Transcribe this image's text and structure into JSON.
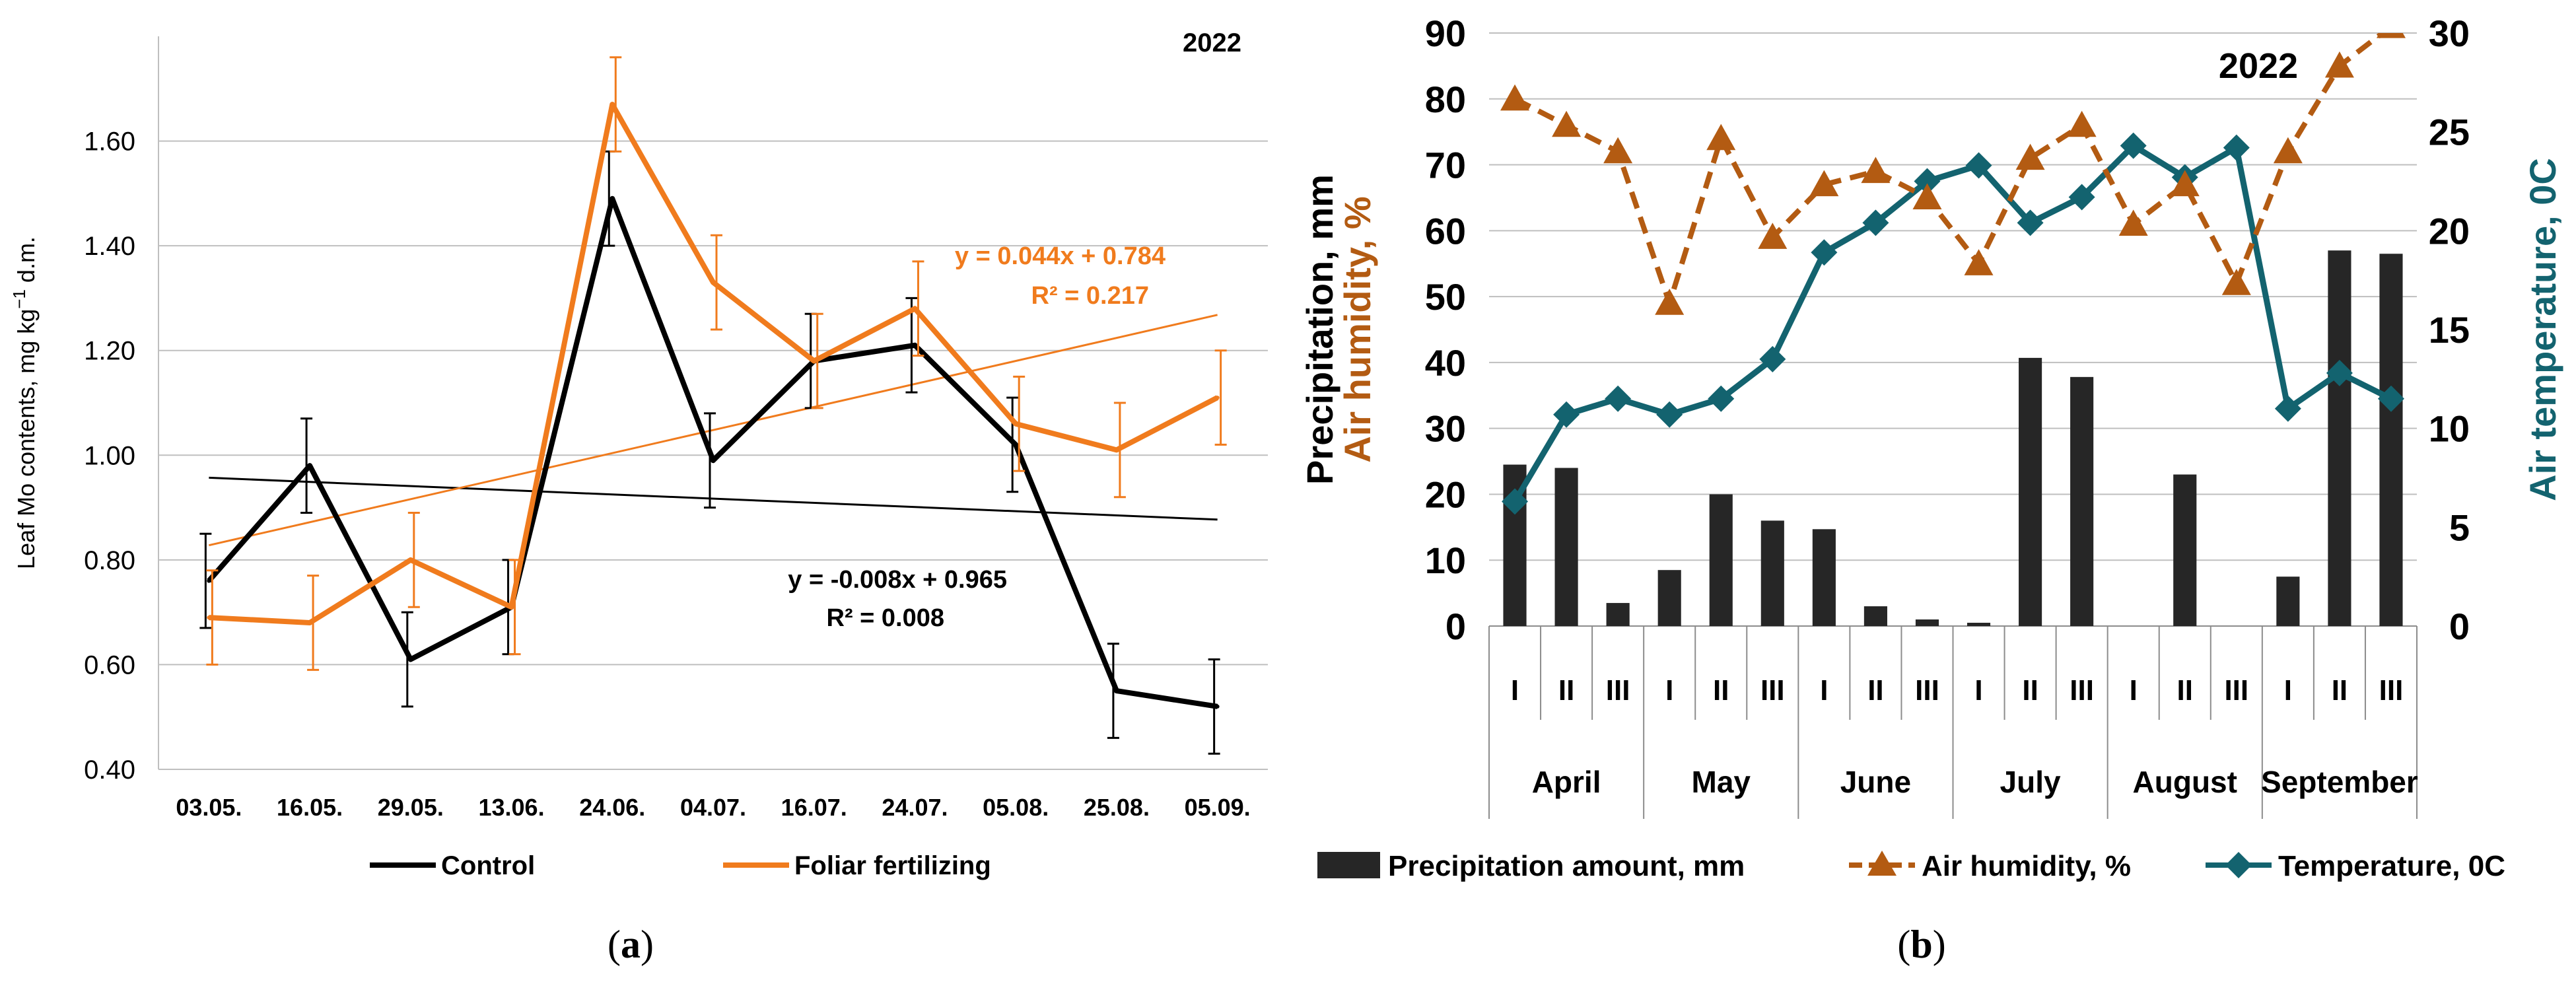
{
  "chart_data": [
    {
      "type": "line",
      "panel_label": "(a)",
      "caption_letter": "a",
      "year_label": "2022",
      "ylabel_main": "Leaf Mo contents, mg kg",
      "ylabel_sup": "−1",
      "ylabel_tail": " d.m.",
      "ylim": [
        0.4,
        1.8
      ],
      "yticks": [
        0.4,
        0.6,
        0.8,
        1.0,
        1.2,
        1.4,
        1.6
      ],
      "ytick_labels": [
        "0.40",
        "0.60",
        "0.80",
        "1.00",
        "1.20",
        "1.40",
        "1.60"
      ],
      "categories": [
        "03.05.",
        "16.05.",
        "29.05.",
        "13.06.",
        "24.06.",
        "04.07.",
        "16.07.",
        "24.07.",
        "05.08.",
        "25.08.",
        "05.09."
      ],
      "series": [
        {
          "name": "Control",
          "color": "#000000",
          "values": [
            0.76,
            0.98,
            0.61,
            0.71,
            1.49,
            0.99,
            1.18,
            1.21,
            1.02,
            0.55,
            0.52
          ],
          "errors": [
            0.09,
            0.09,
            0.09,
            0.09,
            0.09,
            0.09,
            0.09,
            0.09,
            0.09,
            0.09,
            0.09
          ],
          "trend": {
            "slope": -0.008,
            "intercept": 0.965
          },
          "equation": "y = -0.008x + 0.965",
          "r2": "R² = 0.008"
        },
        {
          "name": "Foliar fertilizing",
          "color": "#f07b1d",
          "values": [
            0.69,
            0.68,
            0.8,
            0.71,
            1.67,
            1.33,
            1.18,
            1.28,
            1.06,
            1.01,
            1.11
          ],
          "errors": [
            0.09,
            0.09,
            0.09,
            0.09,
            0.09,
            0.09,
            0.09,
            0.09,
            0.09,
            0.09,
            0.09
          ],
          "trend": {
            "slope": 0.044,
            "intercept": 0.784
          },
          "equation": "y = 0.044x + 0.784",
          "r2": "R² = 0.217"
        }
      ]
    },
    {
      "type": "bar+line",
      "panel_label": "(b)",
      "caption_letter": "b",
      "year_label": "2022",
      "ylabel_left_1": "Precipitation, mm",
      "ylabel_left_2": "Air humidity, %",
      "ylabel_right": "Air temperature, 0C",
      "ylim_left": [
        0,
        90
      ],
      "yticks_left": [
        0,
        10,
        20,
        30,
        40,
        50,
        60,
        70,
        80,
        90
      ],
      "ylim_right": [
        0,
        30
      ],
      "yticks_right": [
        0,
        5,
        10,
        15,
        20,
        25,
        30
      ],
      "decades": [
        "I",
        "II",
        "III",
        "I",
        "II",
        "III",
        "I",
        "II",
        "III",
        "I",
        "II",
        "III",
        "I",
        "II",
        "III",
        "I",
        "II",
        "III"
      ],
      "months": [
        "April",
        "May",
        "June",
        "July",
        "August",
        "September"
      ],
      "series": [
        {
          "name": "Precipitation amount, mm",
          "type": "bar",
          "axis": "left",
          "color": "#262626",
          "values": [
            24.5,
            24,
            3.5,
            8.5,
            20,
            16,
            14.7,
            3,
            1,
            0.5,
            40.7,
            37.8,
            0,
            23,
            0,
            7.5,
            57,
            56.5
          ]
        },
        {
          "name": "Air humidity, %",
          "type": "line",
          "axis": "left",
          "color": "#b35b12",
          "values": [
            80,
            76,
            72,
            49,
            74,
            59,
            67,
            69,
            65,
            55,
            71,
            76,
            61,
            67,
            52,
            72,
            85,
            91
          ]
        },
        {
          "name": "Temperature, 0C",
          "type": "line",
          "axis": "right",
          "color": "#13636f",
          "values": [
            6.3,
            10.7,
            11.5,
            10.7,
            11.5,
            13.5,
            18.9,
            20.4,
            22.5,
            23.3,
            20.4,
            21.7,
            24.3,
            22.7,
            24.2,
            11,
            12.8,
            11.5
          ]
        }
      ]
    }
  ]
}
